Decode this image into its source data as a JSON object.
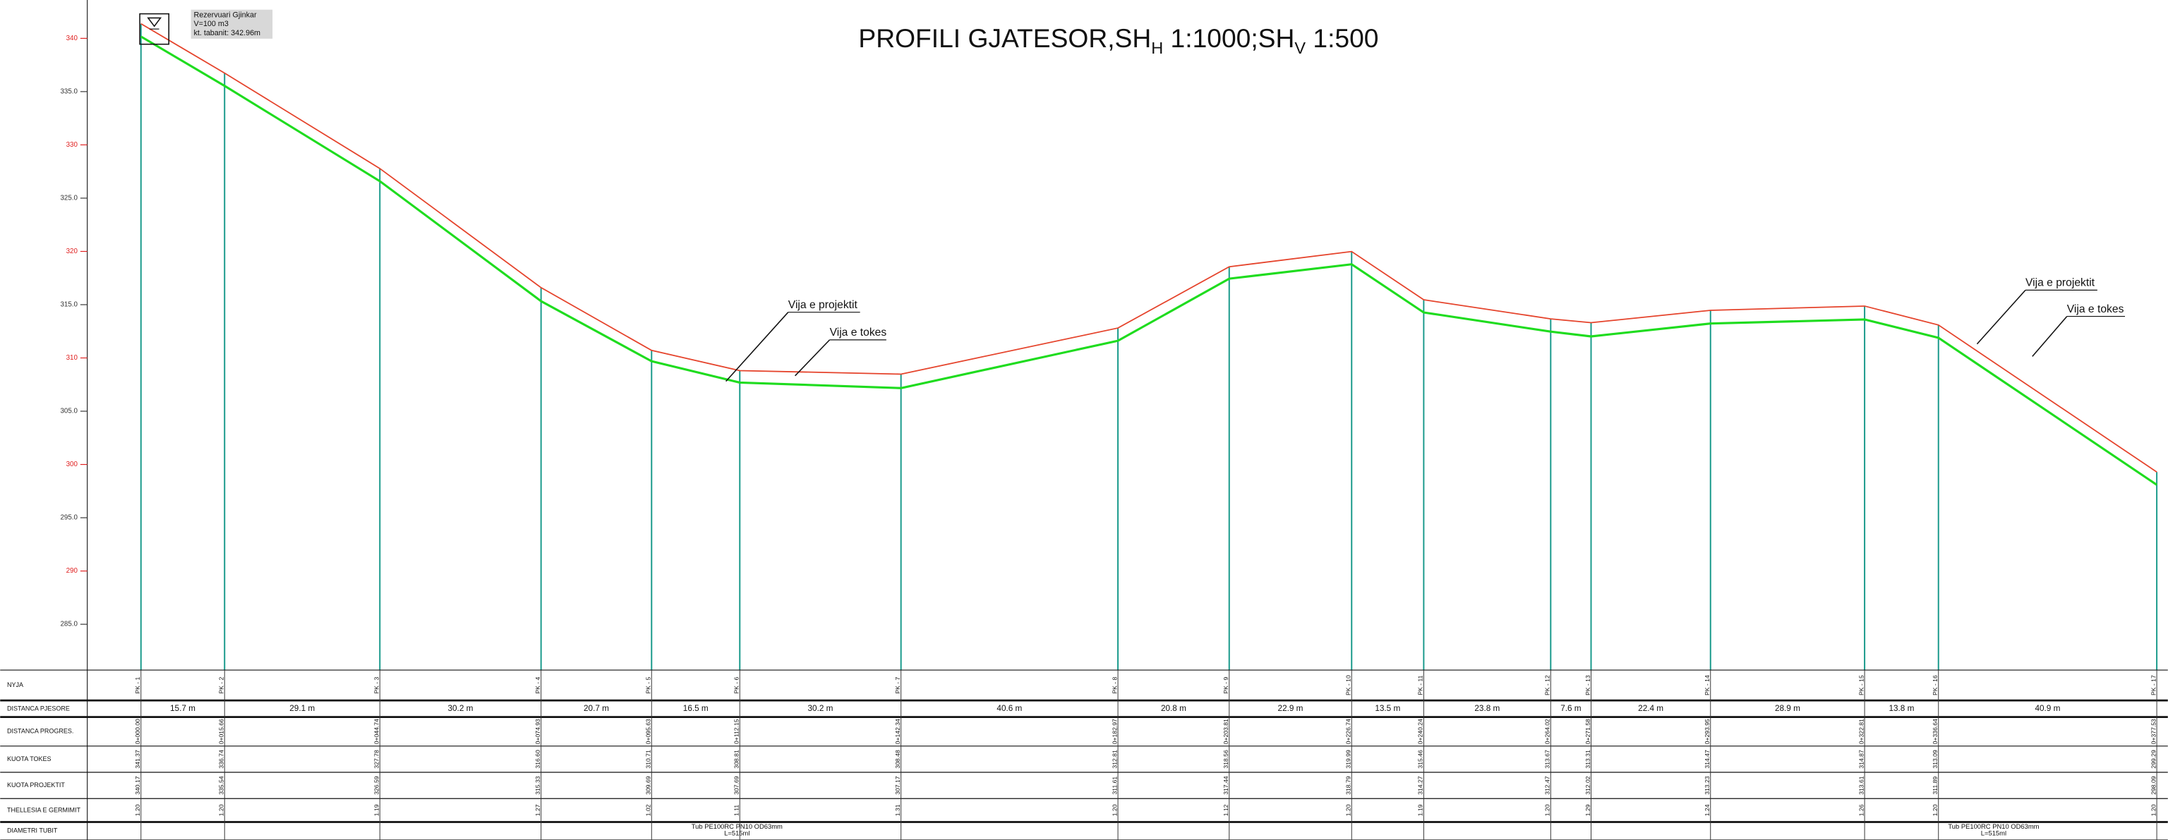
{
  "chart_data": {
    "type": "line",
    "title": [
      "PROFILI GJATESOR,SH",
      "H",
      " 1:1000;SH",
      "V",
      " 1:500"
    ],
    "stations": [
      "PK - 1",
      "PK - 2",
      "PK - 3",
      "PK - 4",
      "PK - 5",
      "PK - 6",
      "PK - 7",
      "PK - 8",
      "PK - 9",
      "PK - 10",
      "PK - 11",
      "PK - 12",
      "PK - 13",
      "PK - 14",
      "PK - 15",
      "PK - 16",
      "PK - 17"
    ],
    "x": [
      0,
      15.66,
      44.74,
      74.93,
      95.63,
      112.15,
      142.34,
      182.97,
      203.81,
      226.74,
      240.24,
      264.02,
      271.58,
      293.95,
      322.81,
      336.64,
      377.53
    ],
    "x_labels": [
      "0+000.00",
      "0+015.66",
      "0+044.74",
      "0+074.93",
      "0+095.63",
      "0+112.15",
      "0+142.34",
      "0+182.97",
      "0+203.81",
      "0+226.74",
      "0+240.24",
      "0+264.02",
      "0+271.58",
      "0+293.95",
      "0+322.81",
      "0+336.64",
      "0+377.53"
    ],
    "xlim": [
      -9.8,
      379.6
    ],
    "ylim": [
      280.7,
      343.6
    ],
    "yticks": [
      {
        "value": 285,
        "label": "285.0"
      },
      290,
      {
        "value": 295,
        "label": "295.0"
      },
      300,
      {
        "value": 305,
        "label": "305.0"
      },
      310,
      {
        "value": 315,
        "label": "315.0"
      },
      320,
      {
        "value": 325,
        "label": "325.0"
      },
      330,
      {
        "value": 335,
        "label": "335.0"
      },
      340
    ],
    "series": [
      {
        "name": "KUOTA TOKES",
        "color": "#e5432b",
        "values": [
          341.37,
          336.74,
          327.78,
          316.6,
          310.71,
          308.81,
          308.48,
          312.81,
          318.56,
          319.99,
          315.46,
          313.67,
          313.31,
          314.47,
          314.87,
          313.09,
          299.29
        ],
        "value_labels": [
          "341.37",
          "336.74",
          "327.78",
          "316.60",
          "310.71",
          "308.81",
          "308.48",
          "312.81",
          "318.56",
          "319.99",
          "315.46",
          "313.67",
          "313.31",
          "314.47",
          "314.87",
          "313.09",
          "299.29"
        ]
      },
      {
        "name": "KUOTA PROJEKTIT",
        "color": "#1fdc1f",
        "values": [
          340.17,
          335.54,
          326.59,
          315.33,
          309.69,
          307.69,
          307.17,
          311.61,
          317.44,
          318.79,
          314.27,
          312.47,
          312.02,
          313.23,
          313.61,
          311.89,
          298.09
        ],
        "value_labels": [
          "340.17",
          "335.54",
          "326.59",
          "315.33",
          "309.69",
          "307.69",
          "307.17",
          "311.61",
          "317.44",
          "318.79",
          "314.27",
          "312.47",
          "312.02",
          "313.23",
          "313.61",
          "311.89",
          "298.09"
        ]
      }
    ],
    "annotations": [
      "Vija e projektit",
      "Vija e tokes",
      "Vija e projektit",
      "Vija e tokes"
    ],
    "reservoir": [
      "Rezervuari Gjinkar",
      "V=100 m3",
      "kt. tabanit: 342.96m"
    ]
  },
  "table": {
    "row_labels": [
      "NYJA",
      "DISTANCA PJESORE",
      "DISTANCA PROGRES.",
      "KUOTA TOKES",
      "KUOTA PROJEKTIT",
      "THELLESIA E GERMIMIT",
      "DIAMETRI TUBIT"
    ],
    "partial_distances": [
      "15.7 m",
      "29.1 m",
      "30.2 m",
      "20.7 m",
      "16.5 m",
      "30.2 m",
      "40.6 m",
      "20.8 m",
      "22.9 m",
      "13.5 m",
      "23.8 m",
      "7.6 m",
      "22.4 m",
      "28.9 m",
      "13.8 m",
      "40.9 m"
    ],
    "depths": [
      "1.20",
      "1.20",
      "1.19",
      "1.27",
      "1.02",
      "1.11",
      "1.31",
      "1.20",
      "1.12",
      "1.20",
      "1.19",
      "1.20",
      "1.29",
      "1.24",
      "1.26",
      "1.20",
      "1.20"
    ],
    "pipe": [
      [
        "Tub PE100RC PN10 OD63mm",
        "L=515ml"
      ],
      [
        "Tub PE100RC PN10 OD63mm",
        "L=515ml"
      ]
    ]
  }
}
